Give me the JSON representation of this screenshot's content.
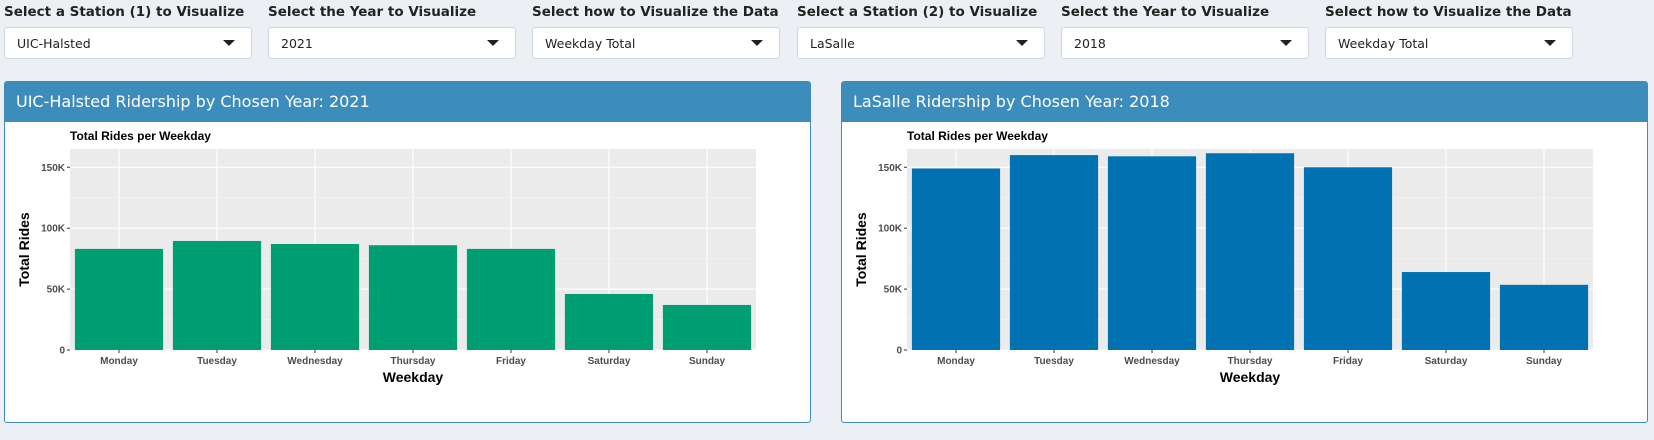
{
  "panels": [
    {
      "controls": [
        {
          "label": "Select a Station (1) to Visualize",
          "value": "UIC-Halsted"
        },
        {
          "label": "Select the Year to Visualize",
          "value": "2021"
        },
        {
          "label": "Select how to Visualize the Data",
          "value": "Weekday Total"
        }
      ],
      "box_title": "UIC-Halsted Ridership by Chosen Year: 2021"
    },
    {
      "controls": [
        {
          "label": "Select a Station (2) to Visualize",
          "value": "LaSalle"
        },
        {
          "label": "Select the Year to Visualize",
          "value": "2018"
        },
        {
          "label": "Select how to Visualize the Data",
          "value": "Weekday Total"
        }
      ],
      "box_title": "LaSalle Ridership by Chosen Year: 2018"
    }
  ],
  "chart_data": [
    {
      "type": "bar",
      "title": "Total Rides per Weekday",
      "xlabel": "Weekday",
      "ylabel": "Total Rides",
      "categories": [
        "Monday",
        "Tuesday",
        "Wednesday",
        "Thursday",
        "Friday",
        "Saturday",
        "Sunday"
      ],
      "values": [
        83000,
        89500,
        87000,
        86000,
        83000,
        46000,
        37000
      ],
      "ylim": [
        0,
        165000
      ],
      "yticks": [
        0,
        50000,
        100000,
        150000
      ],
      "ytick_labels": [
        "0",
        "50K",
        "100K",
        "150K"
      ],
      "bar_color": "#009e73",
      "grid": true
    },
    {
      "type": "bar",
      "title": "Total Rides per Weekday",
      "xlabel": "Weekday",
      "ylabel": "Total Rides",
      "categories": [
        "Monday",
        "Tuesday",
        "Wednesday",
        "Thursday",
        "Friday",
        "Saturday",
        "Sunday"
      ],
      "values": [
        149000,
        160000,
        159000,
        161500,
        150000,
        64000,
        53500
      ],
      "ylim": [
        0,
        165000
      ],
      "yticks": [
        0,
        50000,
        100000,
        150000
      ],
      "ytick_labels": [
        "0",
        "50K",
        "100K",
        "150K"
      ],
      "bar_color": "#0072b2",
      "grid": true
    }
  ]
}
